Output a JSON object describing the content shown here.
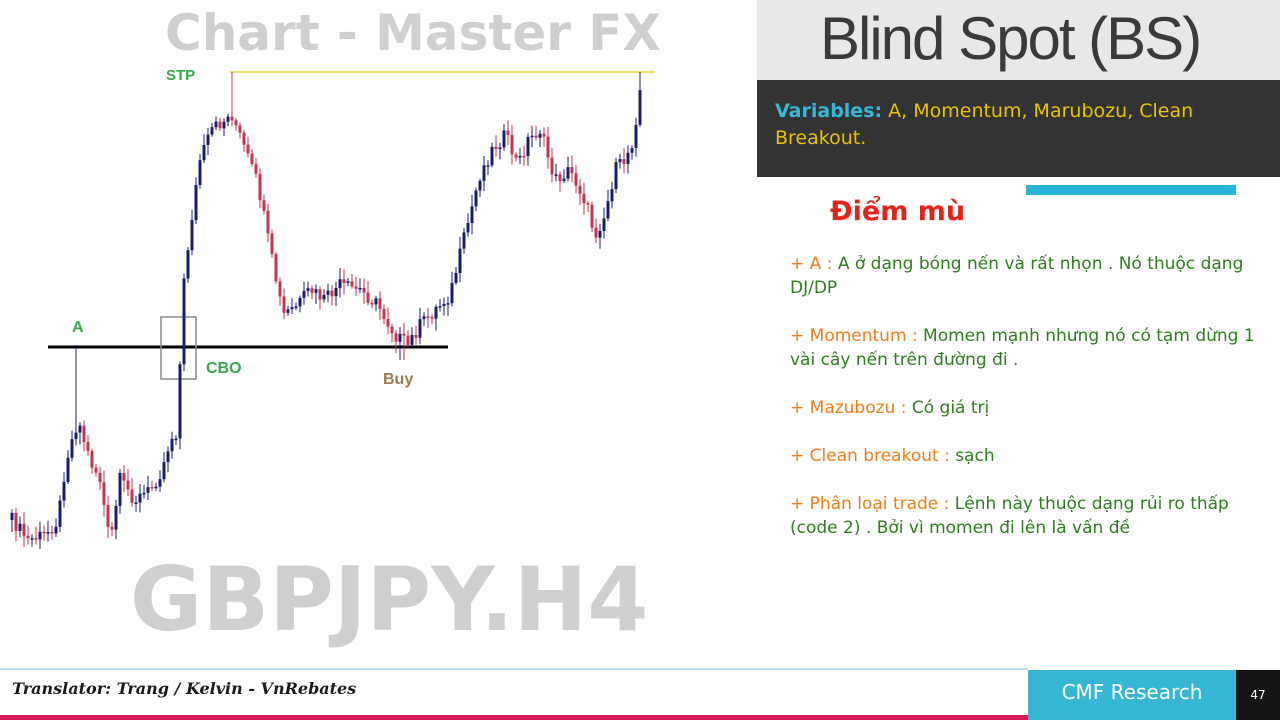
{
  "chart_area": {
    "watermark_top": "Chart - Master FX",
    "watermark_bottom": "GBPJPY.H4",
    "labels": {
      "stp": "STP",
      "a": "A",
      "cbo": "CBO",
      "buy": "Buy"
    },
    "colors": {
      "bull": "#1c1c6e",
      "bear": "#c2364f",
      "stp_line": "#e8de70",
      "level_line": "#000000",
      "green_label": "#35a84d",
      "buy_label": "#a07850"
    }
  },
  "title": "Blind Spot (BS)",
  "variables": {
    "label": "Variables:",
    "text": " A, Momentum, Marubozu, Clean Breakout."
  },
  "subtitle": "Điểm mù",
  "notes": [
    {
      "key": "+ A : ",
      "text": "A ở dạng bóng nến và rất nhọn . Nó thuộc dạng DJ/DP"
    },
    {
      "key": "+ Momentum : ",
      "text": "Momen mạnh nhưng nó có tạm dừng 1 vài cây nến trên đường đi ."
    },
    {
      "key": "+ Mazubozu : ",
      "text": "Có giá trị"
    },
    {
      "key": "+ Clean breakout : ",
      "text": "sạch"
    },
    {
      "key": "+ Phân loại trade : ",
      "text": "Lệnh này thuộc dạng rủi ro thấp (code 2) . Bởi vì momen đi lên là vấn đề"
    }
  ],
  "footer": {
    "translator": "Translator: Trang / Kelvin - VnRebates",
    "brand": "CMF Research",
    "page": "47"
  },
  "colors": {
    "accent": "#2ab3d9",
    "title_dark_box": "#333333",
    "variables_text": "#e8c200",
    "subtitle": "#e32219",
    "note_key": "#ea7d16",
    "note_text": "#2e7d1e"
  }
}
